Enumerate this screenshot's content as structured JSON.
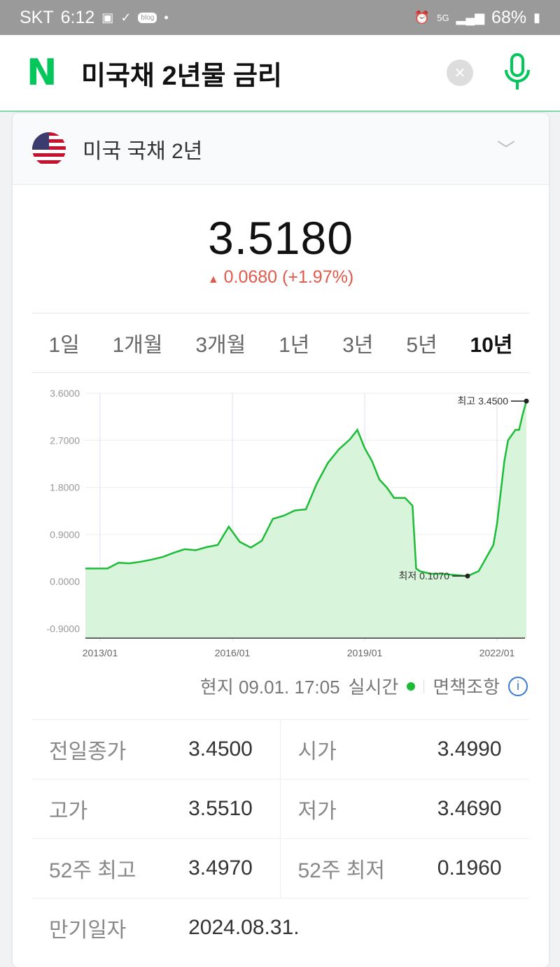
{
  "status": {
    "carrier": "SKT",
    "time": "6:12",
    "network": "5G",
    "battery": "68%",
    "blog_badge": "blog"
  },
  "search": {
    "query": "미국채 2년물 금리"
  },
  "instrument": {
    "name": "미국 국채 2년",
    "price": "3.5180",
    "change": "0.0680 (+1.97%)",
    "direction": "up",
    "colors": {
      "up": "#e0594b",
      "line": "#1cbc36",
      "fill": "#d8f5dc",
      "brand": "#03c75a"
    }
  },
  "tabs": [
    {
      "label": "1일"
    },
    {
      "label": "1개월"
    },
    {
      "label": "3개월"
    },
    {
      "label": "1년"
    },
    {
      "label": "3년"
    },
    {
      "label": "5년"
    },
    {
      "label": "10년",
      "active": true
    }
  ],
  "chart_data": {
    "type": "area",
    "ylim": [
      -1.08,
      3.6
    ],
    "yticks": [
      "3.6000",
      "2.7000",
      "1.8000",
      "0.9000",
      "0.0000",
      "-0.9000"
    ],
    "ytick_values": [
      3.6,
      2.7,
      1.8,
      0.9,
      0,
      -0.9
    ],
    "xticks": [
      "2013/01",
      "2016/01",
      "2019/01",
      "2022/01"
    ],
    "annotations": {
      "high": "최고 3.4500",
      "low": "최저 0.1070"
    },
    "high": {
      "x": "2022-09",
      "y": 3.45
    },
    "low": {
      "x": "2021-05",
      "y": 0.107
    },
    "x": [
      "2012-09",
      "2012-12",
      "2013-03",
      "2013-06",
      "2013-09",
      "2013-12",
      "2014-03",
      "2014-06",
      "2014-09",
      "2014-12",
      "2015-03",
      "2015-06",
      "2015-09",
      "2015-12",
      "2016-03",
      "2016-06",
      "2016-09",
      "2016-12",
      "2017-03",
      "2017-06",
      "2017-09",
      "2017-12",
      "2018-03",
      "2018-06",
      "2018-09",
      "2018-11",
      "2019-01",
      "2019-03",
      "2019-05",
      "2019-07",
      "2019-09",
      "2019-12",
      "2020-02",
      "2020-03",
      "2020-04",
      "2020-07",
      "2020-10",
      "2021-01",
      "2021-05",
      "2021-08",
      "2021-10",
      "2021-12",
      "2022-01",
      "2022-03",
      "2022-04",
      "2022-06",
      "2022-07",
      "2022-08",
      "2022-09"
    ],
    "values": [
      0.25,
      0.25,
      0.25,
      0.36,
      0.35,
      0.38,
      0.42,
      0.47,
      0.55,
      0.62,
      0.6,
      0.66,
      0.7,
      1.05,
      0.76,
      0.65,
      0.78,
      1.2,
      1.26,
      1.36,
      1.38,
      1.88,
      2.27,
      2.53,
      2.72,
      2.9,
      2.55,
      2.3,
      1.95,
      1.8,
      1.6,
      1.6,
      1.45,
      0.25,
      0.2,
      0.15,
      0.15,
      0.13,
      0.107,
      0.2,
      0.45,
      0.7,
      1.1,
      2.3,
      2.7,
      2.9,
      2.9,
      3.2,
      3.45
    ]
  },
  "meta": {
    "time": "현지 09.01. 17:05",
    "realtime": "실시간",
    "disclaimer": "면책조항"
  },
  "stats": [
    [
      {
        "label": "전일종가",
        "value": "3.4500"
      },
      {
        "label": "시가",
        "value": "3.4990"
      }
    ],
    [
      {
        "label": "고가",
        "value": "3.5510"
      },
      {
        "label": "저가",
        "value": "3.4690"
      }
    ],
    [
      {
        "label": "52주 최고",
        "value": "3.4970"
      },
      {
        "label": "52주 최저",
        "value": "0.1960"
      }
    ],
    [
      {
        "label": "만기일자",
        "value": "2024.08.31."
      }
    ]
  ]
}
